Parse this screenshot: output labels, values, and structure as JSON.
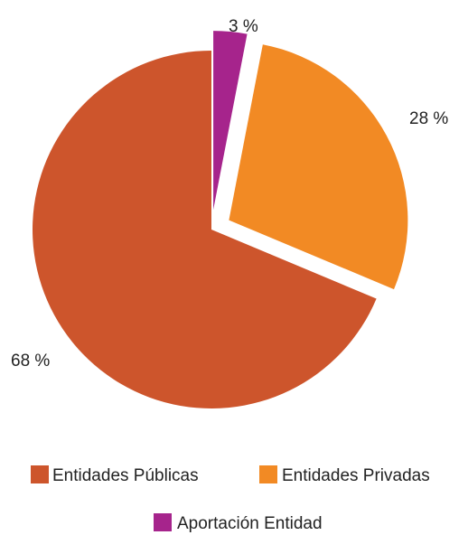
{
  "chart_data": {
    "type": "pie",
    "categories": [
      "Entidades Públicas",
      "Entidades Privadas",
      "Aportación Entidad"
    ],
    "values": [
      68,
      28,
      3
    ],
    "labels": [
      "68 %",
      "28 %",
      "3 %"
    ],
    "colors": [
      "#cd552c",
      "#f28a24",
      "#a6248c"
    ],
    "exploded": [
      false,
      true,
      true
    ],
    "legend": {
      "placement": "bottom",
      "entries": [
        "Entidades Públicas",
        "Entidades Privadas",
        "Aportación Entidad"
      ]
    },
    "title": ""
  }
}
